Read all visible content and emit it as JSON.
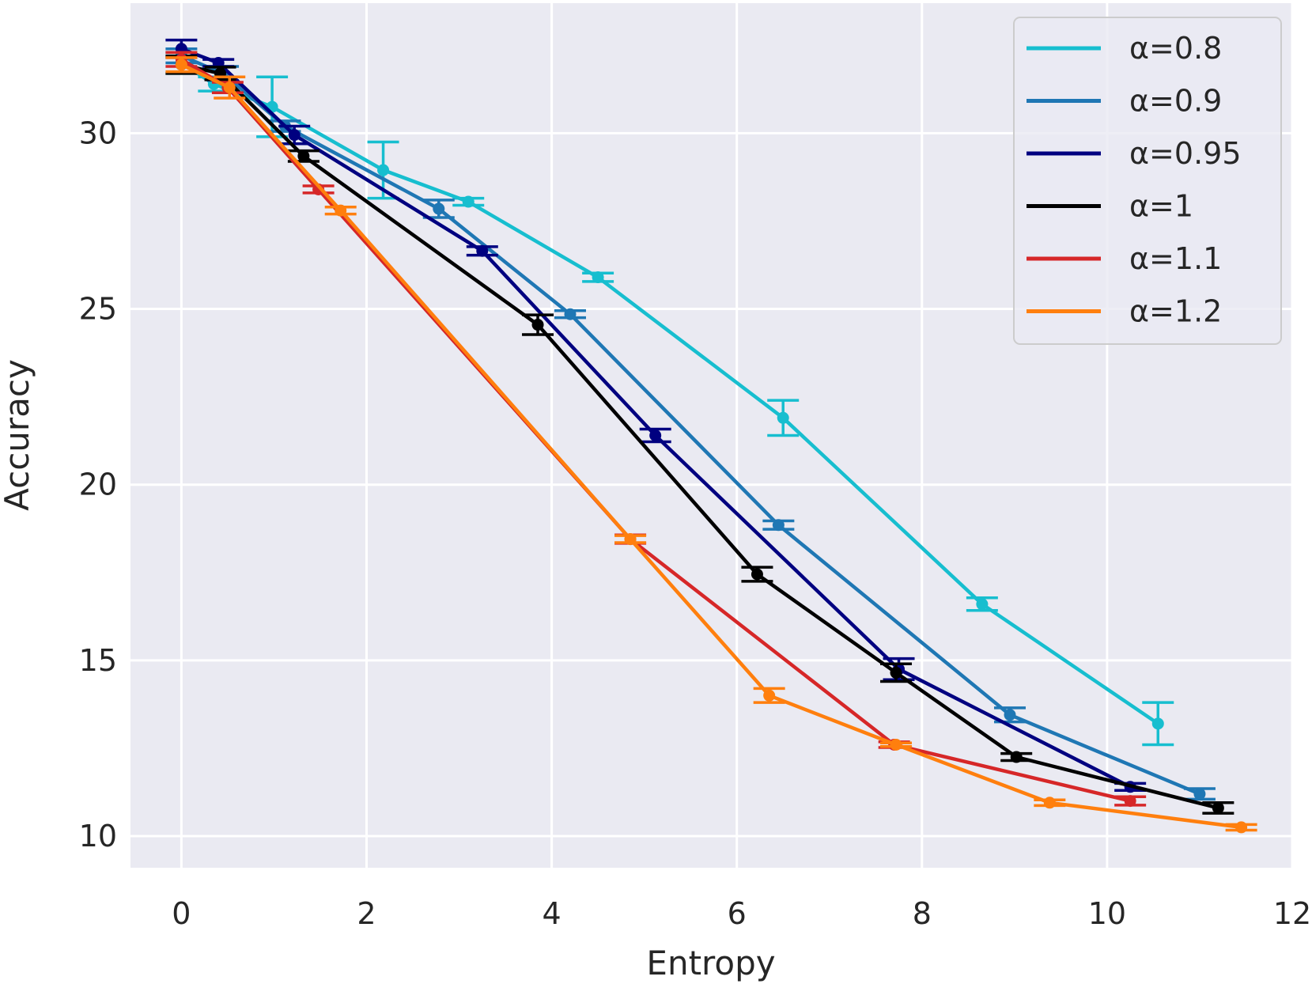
{
  "chart_data": {
    "type": "line",
    "title": "",
    "xlabel": "Entropy",
    "ylabel": "Accuracy",
    "xlim": [
      -0.55,
      12.0
    ],
    "ylim": [
      9.1,
      33.7
    ],
    "xticks": [
      0,
      2,
      4,
      6,
      8,
      10,
      12
    ],
    "yticks": [
      10,
      15,
      20,
      25,
      30
    ],
    "grid": true,
    "legend_position": "top-right",
    "series": [
      {
        "name": "α=0.8",
        "color": "#17becf",
        "x": [
          0.0,
          0.35,
          0.98,
          2.18,
          3.1,
          4.5,
          6.5,
          8.65,
          10.55
        ],
        "y": [
          32.0,
          31.4,
          30.75,
          28.95,
          28.05,
          25.9,
          21.9,
          16.6,
          13.2
        ],
        "err": [
          0.3,
          0.2,
          0.85,
          0.8,
          0.1,
          0.12,
          0.5,
          0.18,
          0.6
        ]
      },
      {
        "name": "α=0.9",
        "color": "#1f77b4",
        "x": [
          0.0,
          0.45,
          1.12,
          2.78,
          4.2,
          6.45,
          8.95,
          11.0
        ],
        "y": [
          32.2,
          31.7,
          30.2,
          27.85,
          24.85,
          18.85,
          13.45,
          11.2
        ],
        "err": [
          0.2,
          0.2,
          0.15,
          0.25,
          0.1,
          0.12,
          0.2,
          0.15
        ]
      },
      {
        "name": "α=0.95",
        "color": "#000080",
        "x": [
          0.0,
          0.4,
          1.22,
          3.25,
          5.12,
          7.75,
          10.25
        ],
        "y": [
          32.4,
          32.0,
          29.95,
          26.65,
          21.4,
          14.75,
          11.4
        ],
        "err": [
          0.25,
          0.1,
          0.25,
          0.12,
          0.18,
          0.3,
          0.1
        ]
      },
      {
        "name": "α=1",
        "color": "#000000",
        "x": [
          0.0,
          0.42,
          1.32,
          3.85,
          6.22,
          7.72,
          9.02,
          11.2
        ],
        "y": [
          31.95,
          31.7,
          29.35,
          24.55,
          17.45,
          14.65,
          12.25,
          10.8
        ],
        "err": [
          0.25,
          0.18,
          0.15,
          0.28,
          0.2,
          0.25,
          0.1,
          0.15
        ]
      },
      {
        "name": "α=1.1",
        "color": "#d62728",
        "x": [
          0.0,
          0.5,
          1.48,
          4.85,
          7.7,
          10.25
        ],
        "y": [
          32.1,
          31.3,
          28.4,
          18.45,
          12.6,
          11.0
        ],
        "err": [
          0.2,
          0.15,
          0.1,
          0.12,
          0.08,
          0.12
        ]
      },
      {
        "name": "α=1.2",
        "color": "#ff7f0e",
        "x": [
          0.0,
          0.52,
          1.72,
          4.85,
          6.35,
          7.72,
          9.38,
          11.45
        ],
        "y": [
          31.95,
          31.3,
          27.8,
          18.45,
          14.0,
          12.6,
          10.95,
          10.25
        ],
        "err": [
          0.2,
          0.3,
          0.1,
          0.1,
          0.2,
          0.05,
          0.08,
          0.08
        ]
      }
    ]
  }
}
